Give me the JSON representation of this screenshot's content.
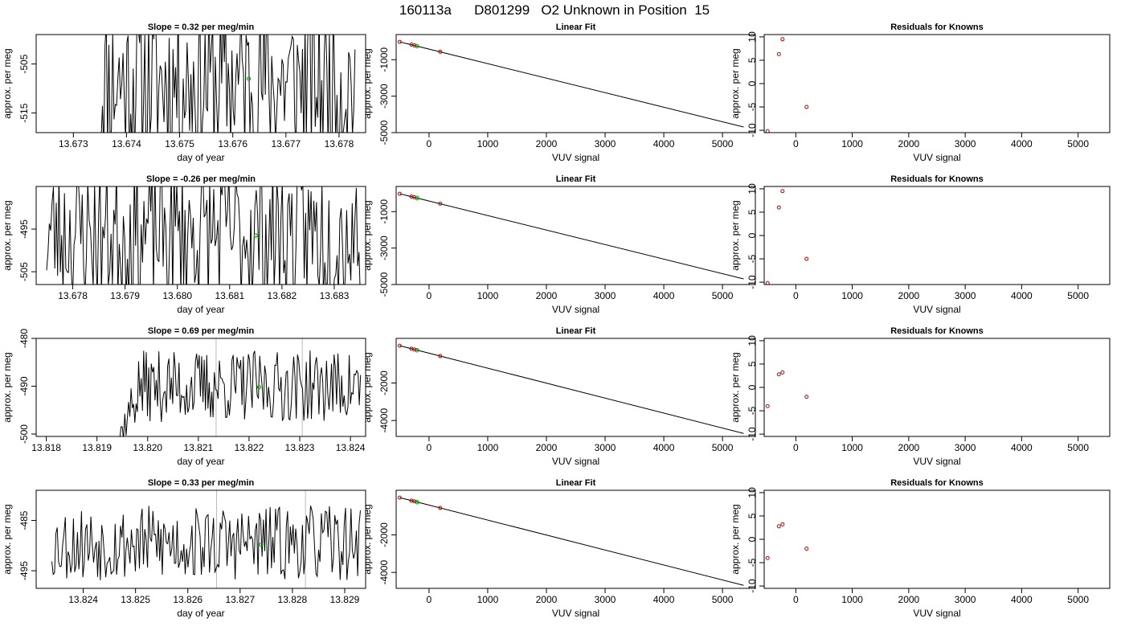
{
  "page_title": "160113a      D801299   O2 Unknown in Position  15",
  "colors": {
    "axis": "#000000",
    "line": "#000000",
    "known_points": "#c00000",
    "unknown_points": "#00b000",
    "marker_lines": "#bbbbbb"
  },
  "chart_data": [
    {
      "type": "line",
      "title": "Slope =  0.32  per meg/min",
      "xlabel": "day of year",
      "ylabel": "approx. per meg",
      "xlim": [
        13.6723,
        13.6785
      ],
      "ylim": [
        -519,
        -499
      ],
      "xticks": [
        13.673,
        13.674,
        13.675,
        13.676,
        13.677,
        13.678
      ],
      "xtick_labels": [
        "13.673",
        "13.674",
        "13.675",
        "13.676",
        "13.677",
        "13.678"
      ],
      "yticks": [
        -505,
        -515
      ],
      "ytick_labels": [
        "-505",
        "-515"
      ],
      "signal": {
        "x_start": 13.6735,
        "x_end": 13.6783,
        "y_center": -508.5,
        "amplitude": 17,
        "n_points": 200,
        "settle_fraction": 0.01,
        "seed": 11
      },
      "marker_x": [],
      "unknown_point": {
        "x": 13.6763,
        "y": -508.0
      }
    },
    {
      "type": "scatter",
      "title": "Linear Fit",
      "xlabel": "VUV signal",
      "ylabel": "approx. per meg",
      "xlim": [
        -560,
        5560
      ],
      "ylim": [
        -5000,
        380
      ],
      "xticks": [
        0,
        1000,
        2000,
        3000,
        4000,
        5000
      ],
      "xtick_labels": [
        "0",
        "1000",
        "2000",
        "3000",
        "4000",
        "5000"
      ],
      "yticks": [
        -1000,
        -3000,
        -5000
      ],
      "ytick_labels": [
        "-1000",
        "-3000",
        "-5000"
      ],
      "fit_line": {
        "x": [
          -500,
          5360
        ],
        "y": [
          -20,
          -4690
        ]
      },
      "known_points": [
        {
          "x": -500,
          "y": -20
        },
        {
          "x": -300,
          "y": -170
        },
        {
          "x": -250,
          "y": -210
        },
        {
          "x": 190,
          "y": -560
        }
      ],
      "unknown_points": [
        {
          "x": -205,
          "y": -250
        }
      ]
    },
    {
      "type": "scatter",
      "title": "Residuals for Knowns",
      "xlabel": "VUV signal",
      "ylabel": "approx. per meg",
      "xlim": [
        -560,
        5560
      ],
      "ylim": [
        -10.5,
        10.5
      ],
      "xticks": [
        0,
        1000,
        2000,
        3000,
        4000,
        5000
      ],
      "xtick_labels": [
        "0",
        "1000",
        "2000",
        "3000",
        "4000",
        "5000"
      ],
      "yticks": [
        -10,
        -5,
        0,
        5,
        10
      ],
      "ytick_labels": [
        "-10",
        "-5",
        "0",
        "5",
        "10"
      ],
      "known_points": [
        {
          "x": -500,
          "y": -10.2
        },
        {
          "x": -300,
          "y": 6.3
        },
        {
          "x": -235,
          "y": 9.5
        },
        {
          "x": 190,
          "y": -5.0
        }
      ]
    },
    {
      "type": "line",
      "title": "Slope =  -0.26  per meg/min",
      "xlabel": "day of year",
      "ylabel": "approx. per meg",
      "xlim": [
        13.6773,
        13.6836
      ],
      "ylim": [
        -508,
        -485
      ],
      "xticks": [
        13.678,
        13.679,
        13.68,
        13.681,
        13.682,
        13.683
      ],
      "xtick_labels": [
        "13.678",
        "13.679",
        "13.680",
        "13.681",
        "13.682",
        "13.683"
      ],
      "yticks": [
        -495,
        -505
      ],
      "ytick_labels": [
        "-495",
        "-505"
      ],
      "signal": {
        "x_start": 13.6775,
        "x_end": 13.6835,
        "y_center": -496,
        "amplitude": 17,
        "n_points": 230,
        "settle_fraction": 0.0,
        "seed": 23
      },
      "marker_x": [],
      "unknown_point": {
        "x": 13.6815,
        "y": -496.5
      }
    },
    {
      "type": "scatter",
      "title": "Linear Fit",
      "xlabel": "VUV signal",
      "ylabel": "approx. per meg",
      "xlim": [
        -560,
        5560
      ],
      "ylim": [
        -5000,
        380
      ],
      "xticks": [
        0,
        1000,
        2000,
        3000,
        4000,
        5000
      ],
      "xtick_labels": [
        "0",
        "1000",
        "2000",
        "3000",
        "4000",
        "5000"
      ],
      "yticks": [
        -1000,
        -3000,
        -5000
      ],
      "ytick_labels": [
        "-1000",
        "-3000",
        "-5000"
      ],
      "fit_line": {
        "x": [
          -500,
          5360
        ],
        "y": [
          -20,
          -4690
        ]
      },
      "known_points": [
        {
          "x": -500,
          "y": -20
        },
        {
          "x": -300,
          "y": -170
        },
        {
          "x": -250,
          "y": -210
        },
        {
          "x": 190,
          "y": -560
        }
      ],
      "unknown_points": [
        {
          "x": -205,
          "y": -250
        }
      ]
    },
    {
      "type": "scatter",
      "title": "Residuals for Knowns",
      "xlabel": "VUV signal",
      "ylabel": "approx. per meg",
      "xlim": [
        -560,
        5560
      ],
      "ylim": [
        -10.5,
        10.5
      ],
      "xticks": [
        0,
        1000,
        2000,
        3000,
        4000,
        5000
      ],
      "xtick_labels": [
        "0",
        "1000",
        "2000",
        "3000",
        "4000",
        "5000"
      ],
      "yticks": [
        -10,
        -5,
        0,
        5,
        10
      ],
      "ytick_labels": [
        "-10",
        "-5",
        "0",
        "5",
        "10"
      ],
      "known_points": [
        {
          "x": -500,
          "y": -10.2
        },
        {
          "x": -300,
          "y": 6.0
        },
        {
          "x": -235,
          "y": 9.5
        },
        {
          "x": 190,
          "y": -5.0
        }
      ]
    },
    {
      "type": "line",
      "title": "Slope =  0.69  per meg/min",
      "xlabel": "day of year",
      "ylabel": "approx. per meg",
      "xlim": [
        13.8178,
        13.8243
      ],
      "ylim": [
        -500.5,
        -480
      ],
      "xticks": [
        13.818,
        13.819,
        13.82,
        13.821,
        13.822,
        13.823,
        13.824
      ],
      "xtick_labels": [
        "13.818",
        "13.819",
        "13.820",
        "13.821",
        "13.822",
        "13.823",
        "13.824"
      ],
      "yticks": [
        -480,
        -490,
        -500
      ],
      "ytick_labels": [
        "-480",
        "-490",
        "-500"
      ],
      "signal": {
        "x_start": 13.81925,
        "x_end": 13.8242,
        "y_center": -490,
        "amplitude": 7.5,
        "n_points": 200,
        "settle_fraction": 0.12,
        "seed": 37
      },
      "marker_x": [
        13.82135,
        13.82305
      ],
      "unknown_point": {
        "x": 13.8222,
        "y": -490.2
      }
    },
    {
      "type": "scatter",
      "title": "Linear Fit",
      "xlabel": "VUV signal",
      "ylabel": "approx. per meg",
      "xlim": [
        -560,
        5560
      ],
      "ylim": [
        -4850,
        380
      ],
      "xticks": [
        0,
        1000,
        2000,
        3000,
        4000,
        5000
      ],
      "xtick_labels": [
        "0",
        "1000",
        "2000",
        "3000",
        "4000",
        "5000"
      ],
      "yticks": [
        -2000,
        -4000
      ],
      "ytick_labels": [
        "-2000",
        "-4000"
      ],
      "fit_line": {
        "x": [
          -500,
          5360
        ],
        "y": [
          -10,
          -4690
        ]
      },
      "known_points": [
        {
          "x": -500,
          "y": -10
        },
        {
          "x": -300,
          "y": -170
        },
        {
          "x": -250,
          "y": -210
        },
        {
          "x": 190,
          "y": -560
        }
      ],
      "unknown_points": [
        {
          "x": -205,
          "y": -250
        }
      ]
    },
    {
      "type": "scatter",
      "title": "Residuals for Knowns",
      "xlabel": "VUV signal",
      "ylabel": "approx. per meg",
      "xlim": [
        -560,
        5560
      ],
      "ylim": [
        -10.5,
        10.5
      ],
      "xticks": [
        0,
        1000,
        2000,
        3000,
        4000,
        5000
      ],
      "xtick_labels": [
        "0",
        "1000",
        "2000",
        "3000",
        "4000",
        "5000"
      ],
      "yticks": [
        -10,
        -5,
        0,
        5,
        10
      ],
      "ytick_labels": [
        "-10",
        "-5",
        "0",
        "5",
        "10"
      ],
      "known_points": [
        {
          "x": -500,
          "y": -4.0
        },
        {
          "x": -300,
          "y": 2.8
        },
        {
          "x": -235,
          "y": 3.2
        },
        {
          "x": 190,
          "y": -2.0
        }
      ]
    },
    {
      "type": "line",
      "title": "Slope =  0.33  per meg/min",
      "xlabel": "day of year",
      "ylabel": "approx. per meg",
      "xlim": [
        13.8231,
        13.8294
      ],
      "ylim": [
        -498.5,
        -479
      ],
      "xticks": [
        13.824,
        13.825,
        13.826,
        13.827,
        13.828,
        13.829
      ],
      "xtick_labels": [
        "13.824",
        "13.825",
        "13.826",
        "13.827",
        "13.828",
        "13.829"
      ],
      "yticks": [
        -485,
        -495
      ],
      "ytick_labels": [
        "-485",
        "-495"
      ],
      "signal": {
        "x_start": 13.8234,
        "x_end": 13.8293,
        "y_center": -489.5,
        "amplitude": 7.5,
        "n_points": 230,
        "settle_fraction": 0.0,
        "seed": 53
      },
      "marker_x": [
        13.82655,
        13.82825
      ],
      "unknown_point": {
        "x": 13.8274,
        "y": -489.8
      }
    },
    {
      "type": "scatter",
      "title": "Linear Fit",
      "xlabel": "VUV signal",
      "ylabel": "approx. per meg",
      "xlim": [
        -560,
        5560
      ],
      "ylim": [
        -4850,
        380
      ],
      "xticks": [
        0,
        1000,
        2000,
        3000,
        4000,
        5000
      ],
      "xtick_labels": [
        "0",
        "1000",
        "2000",
        "3000",
        "4000",
        "5000"
      ],
      "yticks": [
        -2000,
        -4000
      ],
      "ytick_labels": [
        "-2000",
        "-4000"
      ],
      "fit_line": {
        "x": [
          -500,
          5360
        ],
        "y": [
          -10,
          -4690
        ]
      },
      "known_points": [
        {
          "x": -500,
          "y": -10
        },
        {
          "x": -300,
          "y": -170
        },
        {
          "x": -250,
          "y": -210
        },
        {
          "x": 190,
          "y": -560
        }
      ],
      "unknown_points": [
        {
          "x": -205,
          "y": -250
        }
      ]
    },
    {
      "type": "scatter",
      "title": "Residuals for Knowns",
      "xlabel": "VUV signal",
      "ylabel": "approx. per meg",
      "xlim": [
        -560,
        5560
      ],
      "ylim": [
        -10.5,
        10.5
      ],
      "xticks": [
        0,
        1000,
        2000,
        3000,
        4000,
        5000
      ],
      "xtick_labels": [
        "0",
        "1000",
        "2000",
        "3000",
        "4000",
        "5000"
      ],
      "yticks": [
        -10,
        -5,
        0,
        5,
        10
      ],
      "ytick_labels": [
        "-10",
        "-5",
        "0",
        "5",
        "10"
      ],
      "known_points": [
        {
          "x": -500,
          "y": -4.0
        },
        {
          "x": -300,
          "y": 2.8
        },
        {
          "x": -235,
          "y": 3.2
        },
        {
          "x": 190,
          "y": -2.0
        }
      ]
    }
  ]
}
